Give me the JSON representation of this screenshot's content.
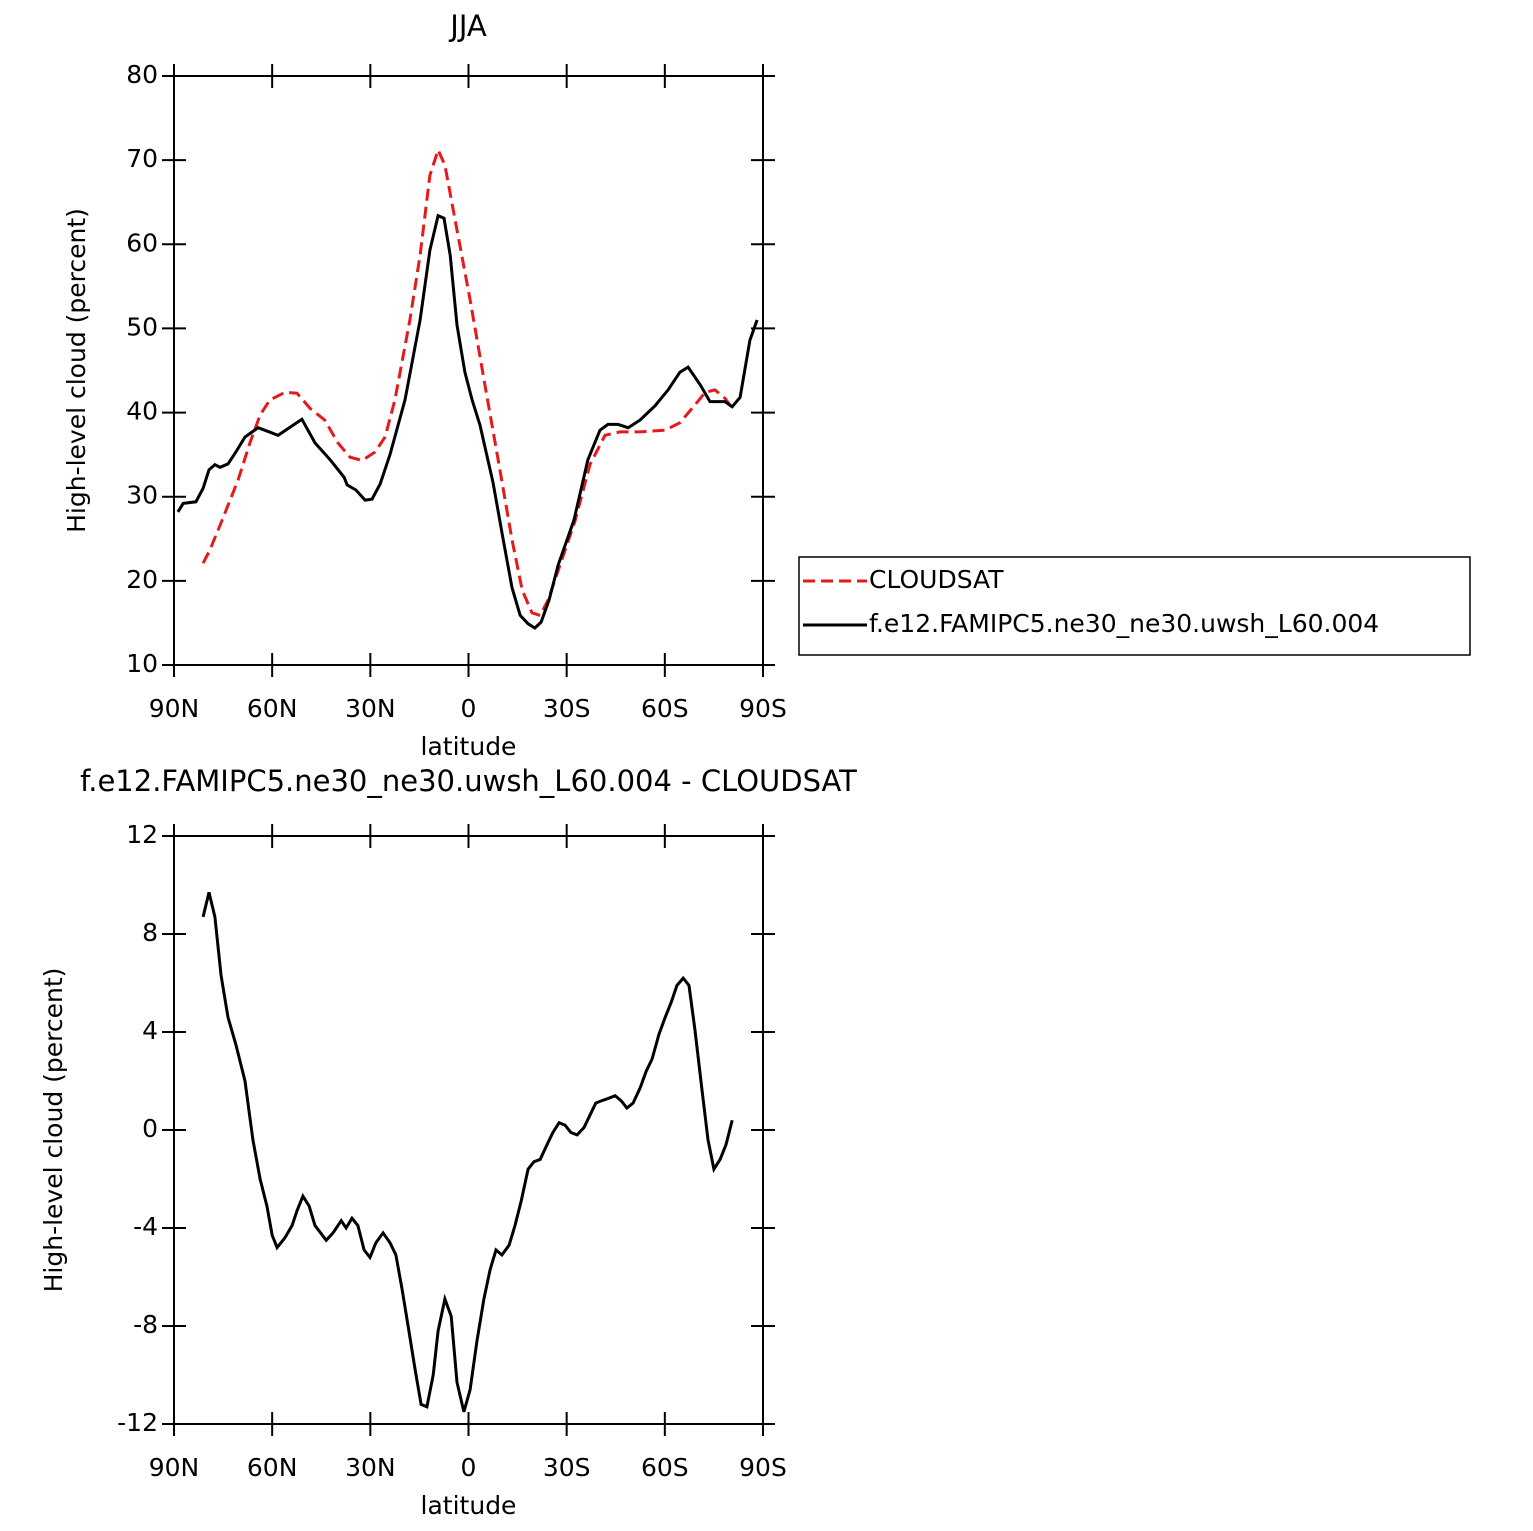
{
  "chart_data": [
    {
      "type": "line",
      "title": "JJA",
      "xlabel": "latitude",
      "ylabel": "High-level cloud (percent)",
      "xlim": [
        90,
        -90
      ],
      "xticks": [
        {
          "value": 90,
          "label": "90N"
        },
        {
          "value": 60,
          "label": "60N"
        },
        {
          "value": 30,
          "label": "30N"
        },
        0,
        {
          "value": -30,
          "label": "30S"
        },
        {
          "value": -60,
          "label": "60S"
        },
        {
          "value": -90,
          "label": "90S"
        }
      ],
      "ylim": [
        10,
        80
      ],
      "yticks": [
        10,
        20,
        30,
        40,
        50,
        60,
        70,
        80
      ],
      "legend": "right",
      "series": [
        {
          "name": "CLOUDSAT",
          "color": "#e41a1c",
          "linestyle": "dashed",
          "x": [
            81.1,
            79.0,
            75.3,
            70.4,
            66.8,
            63.7,
            60.7,
            56.1,
            52.4,
            48.4,
            43.9,
            39.9,
            36.2,
            32.5,
            28.6,
            25.5,
            22.5,
            17.9,
            14.8,
            11.8,
            9.3,
            7.2,
            4.1,
            -0.5,
            -5.0,
            -9.6,
            -13.3,
            -16.4,
            -19.4,
            -21.9,
            -24.3,
            -28.0,
            -32.6,
            -37.1,
            -41.7,
            -46.3,
            -52.4,
            -60.1,
            -64.6,
            -69.2,
            -72.3,
            -75.3,
            -78.4,
            -80.6
          ],
          "values": [
            22.1,
            23.7,
            27.2,
            32.0,
            36.4,
            39.7,
            41.5,
            42.4,
            42.3,
            40.5,
            39.1,
            36.4,
            34.7,
            34.3,
            35.3,
            37.1,
            41.5,
            51.0,
            58.7,
            68.2,
            71.2,
            69.4,
            62.9,
            53.4,
            43.3,
            33.2,
            24.9,
            18.9,
            16.2,
            15.9,
            17.7,
            21.9,
            27.2,
            33.8,
            37.3,
            37.7,
            37.7,
            37.9,
            38.8,
            40.9,
            42.4,
            42.7,
            41.7,
            40.5
          ]
        },
        {
          "name": "f.e12.FAMIPC5.ne30_ne30.uwsh_L60.004",
          "color": "#000000",
          "linestyle": "solid",
          "x": [
            88.8,
            87.2,
            83.3,
            81.1,
            79.3,
            77.5,
            75.9,
            73.5,
            71.1,
            68.3,
            64.3,
            58.2,
            50.9,
            46.9,
            42.3,
            38.0,
            37.1,
            34.4,
            31.6,
            29.5,
            27.0,
            24.0,
            19.4,
            14.8,
            11.8,
            9.3,
            7.5,
            5.6,
            3.5,
            1.1,
            -1.1,
            -3.5,
            -7.5,
            -10.6,
            -13.3,
            -15.8,
            -18.2,
            -20.3,
            -22.2,
            -24.6,
            -27.4,
            -32.2,
            -36.5,
            -40.2,
            -42.6,
            -45.7,
            -48.8,
            -52.4,
            -57.0,
            -61.0,
            -64.6,
            -67.1,
            -70.8,
            -73.8,
            -78.4,
            -80.6,
            -83.0,
            -86.0,
            -88.2
          ],
          "values": [
            28.2,
            29.2,
            29.4,
            31.0,
            33.2,
            33.8,
            33.5,
            33.9,
            35.3,
            37.1,
            38.2,
            37.3,
            39.2,
            36.4,
            34.4,
            32.3,
            31.4,
            30.8,
            29.6,
            29.7,
            31.5,
            35.0,
            41.5,
            51.0,
            59.3,
            63.4,
            63.1,
            58.7,
            50.4,
            44.8,
            41.5,
            38.5,
            31.7,
            24.9,
            19.2,
            15.9,
            14.9,
            14.4,
            15.1,
            17.7,
            21.9,
            27.2,
            34.4,
            37.9,
            38.6,
            38.6,
            38.2,
            39.1,
            40.8,
            42.7,
            44.8,
            45.4,
            43.3,
            41.3,
            41.3,
            40.7,
            41.8,
            48.6,
            51.0
          ]
        }
      ]
    },
    {
      "type": "line",
      "title": "f.e12.FAMIPC5.ne30_ne30.uwsh_L60.004 - CLOUDSAT",
      "xlabel": "latitude",
      "ylabel": "High-level cloud (percent)",
      "xlim": [
        90,
        -90
      ],
      "xticks": [
        {
          "value": 90,
          "label": "90N"
        },
        {
          "value": 60,
          "label": "60N"
        },
        {
          "value": 30,
          "label": "30N"
        },
        0,
        {
          "value": -30,
          "label": "30S"
        },
        {
          "value": -60,
          "label": "60S"
        },
        {
          "value": -90,
          "label": "90S"
        }
      ],
      "ylim": [
        -12,
        12
      ],
      "yticks": [
        -12,
        -8,
        -4,
        0,
        4,
        8,
        12
      ],
      "series": [
        {
          "color": "#000000",
          "linestyle": "solid",
          "x": [
            81.1,
            79.3,
            77.5,
            75.6,
            73.5,
            71.1,
            68.3,
            65.9,
            63.7,
            61.6,
            60.0,
            58.5,
            56.1,
            53.9,
            52.4,
            50.6,
            48.7,
            46.9,
            43.5,
            41.4,
            38.9,
            37.4,
            35.6,
            33.8,
            31.9,
            30.1,
            28.3,
            26.1,
            24.0,
            22.2,
            20.3,
            18.2,
            16.3,
            14.5,
            12.7,
            10.8,
            9.3,
            7.2,
            5.3,
            3.5,
            1.4,
            -0.5,
            -2.6,
            -4.7,
            -6.6,
            -8.4,
            -10.2,
            -12.4,
            -14.2,
            -16.1,
            -18.2,
            -20.0,
            -21.9,
            -24.0,
            -25.8,
            -27.7,
            -29.5,
            -31.3,
            -33.2,
            -35.3,
            -37.1,
            -38.9,
            -40.8,
            -42.9,
            -44.8,
            -46.6,
            -48.4,
            -50.3,
            -52.4,
            -54.3,
            -56.1,
            -58.2,
            -60.1,
            -61.9,
            -63.7,
            -65.6,
            -67.4,
            -69.2,
            -71.4,
            -73.2,
            -75.0,
            -76.9,
            -78.7,
            -80.6
          ],
          "values": [
            8.7,
            9.7,
            8.7,
            6.3,
            4.6,
            3.5,
            2.0,
            -0.4,
            -2.0,
            -3.1,
            -4.3,
            -4.8,
            -4.4,
            -3.9,
            -3.3,
            -2.7,
            -3.1,
            -3.9,
            -4.5,
            -4.2,
            -3.7,
            -4.0,
            -3.6,
            -3.9,
            -4.9,
            -5.2,
            -4.6,
            -4.2,
            -4.6,
            -5.1,
            -6.5,
            -8.2,
            -9.8,
            -11.2,
            -11.3,
            -10.0,
            -8.2,
            -6.9,
            -7.6,
            -10.3,
            -11.5,
            -10.6,
            -8.6,
            -6.9,
            -5.7,
            -4.9,
            -5.1,
            -4.7,
            -3.9,
            -2.9,
            -1.6,
            -1.3,
            -1.2,
            -0.6,
            -0.1,
            0.3,
            0.2,
            -0.1,
            -0.2,
            0.1,
            0.6,
            1.1,
            1.2,
            1.3,
            1.4,
            1.2,
            0.9,
            1.1,
            1.7,
            2.4,
            2.9,
            3.9,
            4.6,
            5.2,
            5.9,
            6.2,
            5.9,
            4.1,
            1.6,
            -0.4,
            -1.6,
            -1.2,
            -0.6,
            0.4
          ]
        }
      ]
    }
  ]
}
